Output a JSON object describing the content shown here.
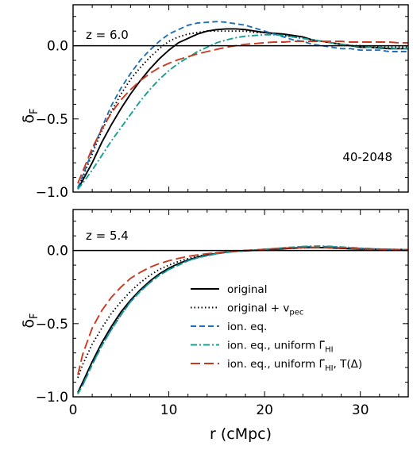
{
  "chart_data": [
    {
      "type": "line",
      "panel": "top",
      "annotation_z": "z = 6.0",
      "annotation_box": "40-2048",
      "xlabel": "",
      "ylabel": "δF",
      "xlim": [
        0,
        35
      ],
      "ylim": [
        -1.0,
        0.28
      ],
      "xticks": [
        0,
        10,
        20,
        30
      ],
      "xtick_labels_shown": false,
      "yticks": [
        -1.0,
        -0.5,
        0.0
      ],
      "ytick_labels": [
        "−1.0",
        "−0.5",
        "0.0"
      ],
      "zero_line": true,
      "series": [
        {
          "name": "original",
          "color": "#000000",
          "style": "solid",
          "x": [
            0.5,
            1,
            2,
            3,
            4,
            5,
            6,
            7,
            8,
            9,
            10,
            11,
            12,
            13,
            14,
            15,
            16,
            17,
            18,
            19,
            20,
            21,
            22,
            23,
            24,
            25,
            26,
            27,
            28,
            29,
            30,
            31,
            32,
            33,
            34,
            35
          ],
          "y": [
            -0.98,
            -0.92,
            -0.8,
            -0.66,
            -0.54,
            -0.43,
            -0.33,
            -0.24,
            -0.16,
            -0.09,
            -0.03,
            0.02,
            0.05,
            0.08,
            0.1,
            0.11,
            0.115,
            0.115,
            0.11,
            0.1,
            0.09,
            0.085,
            0.08,
            0.07,
            0.06,
            0.04,
            0.03,
            0.02,
            0.01,
            0.0,
            -0.01,
            -0.01,
            -0.015,
            -0.02,
            -0.02,
            -0.02
          ]
        },
        {
          "name": "original + vpec",
          "color": "#000000",
          "style": "dotted",
          "x": [
            0.5,
            1,
            2,
            3,
            4,
            5,
            6,
            7,
            8,
            9,
            10,
            11,
            12,
            13,
            14,
            15,
            16,
            17,
            18,
            19,
            20,
            21,
            22,
            23,
            24,
            25,
            26,
            27,
            28,
            29,
            30,
            31,
            32,
            33,
            34,
            35
          ],
          "y": [
            -0.97,
            -0.9,
            -0.74,
            -0.58,
            -0.45,
            -0.33,
            -0.23,
            -0.15,
            -0.08,
            -0.02,
            0.03,
            0.06,
            0.08,
            0.09,
            0.1,
            0.1,
            0.1,
            0.1,
            0.1,
            0.09,
            0.09,
            0.08,
            0.07,
            0.06,
            0.05,
            0.04,
            0.03,
            0.02,
            0.01,
            0.0,
            0.0,
            -0.005,
            -0.01,
            -0.01,
            -0.01,
            -0.01
          ]
        },
        {
          "name": "ion. eq.",
          "color": "#1f6fb5",
          "style": "dashed",
          "x": [
            0.5,
            1,
            2,
            3,
            4,
            5,
            6,
            7,
            8,
            9,
            10,
            11,
            12,
            13,
            14,
            15,
            16,
            17,
            18,
            19,
            20,
            21,
            22,
            23,
            24,
            25,
            26,
            27,
            28,
            29,
            30,
            31,
            32,
            33,
            34,
            35
          ],
          "y": [
            -0.97,
            -0.89,
            -0.72,
            -0.56,
            -0.41,
            -0.29,
            -0.19,
            -0.1,
            -0.03,
            0.03,
            0.08,
            0.11,
            0.14,
            0.155,
            0.16,
            0.165,
            0.16,
            0.15,
            0.14,
            0.12,
            0.1,
            0.08,
            0.06,
            0.04,
            0.03,
            0.01,
            0.0,
            -0.01,
            -0.02,
            -0.02,
            -0.03,
            -0.03,
            -0.03,
            -0.04,
            -0.04,
            -0.04
          ]
        },
        {
          "name": "ion. eq., uniform Γ̃HI",
          "color": "#16a090",
          "style": "dashdot",
          "x": [
            0.5,
            1,
            2,
            3,
            4,
            5,
            6,
            7,
            8,
            9,
            10,
            11,
            12,
            13,
            14,
            15,
            16,
            17,
            18,
            19,
            20,
            21,
            22,
            23,
            24,
            25,
            26,
            27,
            28,
            29,
            30,
            31,
            32,
            33,
            34,
            35
          ],
          "y": [
            -0.98,
            -0.94,
            -0.85,
            -0.75,
            -0.65,
            -0.56,
            -0.47,
            -0.38,
            -0.3,
            -0.23,
            -0.17,
            -0.12,
            -0.08,
            -0.04,
            -0.01,
            0.02,
            0.04,
            0.055,
            0.065,
            0.07,
            0.075,
            0.075,
            0.07,
            0.06,
            0.05,
            0.04,
            0.03,
            0.02,
            0.01,
            0.0,
            -0.005,
            -0.01,
            -0.01,
            -0.015,
            -0.02,
            -0.02
          ]
        },
        {
          "name": "ion. eq., uniform Γ̃HI, T(Δ)",
          "color": "#c8391f",
          "style": "longdash",
          "x": [
            0.5,
            1,
            2,
            3,
            4,
            5,
            6,
            7,
            8,
            9,
            10,
            11,
            12,
            13,
            14,
            15,
            16,
            17,
            18,
            19,
            20,
            21,
            22,
            23,
            24,
            25,
            26,
            27,
            28,
            29,
            30,
            31,
            32,
            33,
            34,
            35
          ],
          "y": [
            -0.94,
            -0.86,
            -0.7,
            -0.57,
            -0.46,
            -0.37,
            -0.3,
            -0.24,
            -0.19,
            -0.15,
            -0.12,
            -0.095,
            -0.075,
            -0.055,
            -0.04,
            -0.025,
            -0.01,
            0.0,
            0.01,
            0.015,
            0.02,
            0.025,
            0.025,
            0.03,
            0.03,
            0.03,
            0.03,
            0.03,
            0.03,
            0.025,
            0.025,
            0.025,
            0.025,
            0.025,
            0.02,
            0.02
          ]
        }
      ]
    },
    {
      "type": "line",
      "panel": "bottom",
      "annotation_z": "z = 5.4",
      "xlabel": "r (cMpc)",
      "ylabel": "δF",
      "xlim": [
        0,
        35
      ],
      "ylim": [
        -1.0,
        0.28
      ],
      "xticks": [
        0,
        10,
        20,
        30
      ],
      "xtick_labels": [
        "0",
        "10",
        "20",
        "30"
      ],
      "yticks": [
        -1.0,
        -0.5,
        0.0
      ],
      "ytick_labels": [
        "−1.0",
        "−0.5",
        "0.0"
      ],
      "zero_line": true,
      "legend": {
        "placement": "lower-right",
        "entries": [
          {
            "label": "original",
            "sub": ""
          },
          {
            "label": "original + v",
            "sub": "pec"
          },
          {
            "label": "ion. eq.",
            "sub": ""
          },
          {
            "label": "ion. eq., uniform Γ̃",
            "sub": "HI"
          },
          {
            "label": "ion. eq., uniform Γ̃",
            "sub": "HI",
            "suffix": ", T(Δ)"
          }
        ]
      },
      "series": [
        {
          "name": "original",
          "color": "#000000",
          "style": "solid",
          "x": [
            0.5,
            1,
            2,
            3,
            4,
            5,
            6,
            7,
            8,
            9,
            10,
            11,
            12,
            13,
            14,
            15,
            16,
            17,
            18,
            19,
            20,
            21,
            22,
            23,
            24,
            25,
            26,
            27,
            28,
            29,
            30,
            31,
            32,
            33,
            34,
            35
          ],
          "y": [
            -0.97,
            -0.9,
            -0.76,
            -0.63,
            -0.52,
            -0.42,
            -0.34,
            -0.27,
            -0.21,
            -0.16,
            -0.12,
            -0.09,
            -0.065,
            -0.045,
            -0.03,
            -0.02,
            -0.012,
            -0.006,
            -0.002,
            0.001,
            0.004,
            0.008,
            0.012,
            0.016,
            0.02,
            0.02,
            0.02,
            0.018,
            0.015,
            0.012,
            0.01,
            0.01,
            0.008,
            0.006,
            0.005,
            0.005
          ]
        },
        {
          "name": "original + vpec",
          "color": "#000000",
          "style": "dotted",
          "x": [
            0.5,
            1,
            2,
            3,
            4,
            5,
            6,
            7,
            8,
            9,
            10,
            11,
            12,
            13,
            14,
            15,
            16,
            17,
            18,
            19,
            20,
            21,
            22,
            23,
            24,
            25,
            26,
            27,
            28,
            29,
            30,
            31,
            32,
            33,
            34,
            35
          ],
          "y": [
            -0.87,
            -0.78,
            -0.64,
            -0.53,
            -0.43,
            -0.35,
            -0.28,
            -0.22,
            -0.17,
            -0.13,
            -0.1,
            -0.075,
            -0.055,
            -0.04,
            -0.028,
            -0.018,
            -0.01,
            -0.004,
            0.0,
            0.004,
            0.007,
            0.01,
            0.013,
            0.016,
            0.018,
            0.02,
            0.02,
            0.018,
            0.016,
            0.014,
            0.012,
            0.01,
            0.009,
            0.008,
            0.007,
            0.006
          ]
        },
        {
          "name": "ion. eq.",
          "color": "#1f6fb5",
          "style": "dashed",
          "x": [
            0.5,
            1,
            2,
            3,
            4,
            5,
            6,
            7,
            8,
            9,
            10,
            11,
            12,
            13,
            14,
            15,
            16,
            17,
            18,
            19,
            20,
            21,
            22,
            23,
            24,
            25,
            26,
            27,
            28,
            29,
            30,
            31,
            32,
            33,
            34,
            35
          ],
          "y": [
            -0.98,
            -0.92,
            -0.78,
            -0.65,
            -0.54,
            -0.44,
            -0.35,
            -0.28,
            -0.22,
            -0.17,
            -0.13,
            -0.1,
            -0.07,
            -0.05,
            -0.035,
            -0.022,
            -0.013,
            -0.006,
            -0.001,
            0.003,
            0.008,
            0.013,
            0.018,
            0.022,
            0.025,
            0.027,
            0.027,
            0.025,
            0.022,
            0.018,
            0.015,
            0.012,
            0.01,
            0.008,
            0.006,
            0.005
          ]
        },
        {
          "name": "ion. eq., uniform Γ̃HI",
          "color": "#16a090",
          "style": "dashdot",
          "x": [
            0.5,
            1,
            2,
            3,
            4,
            5,
            6,
            7,
            8,
            9,
            10,
            11,
            12,
            13,
            14,
            15,
            16,
            17,
            18,
            19,
            20,
            21,
            22,
            23,
            24,
            25,
            26,
            27,
            28,
            29,
            30,
            31,
            32,
            33,
            34,
            35
          ],
          "y": [
            -0.98,
            -0.92,
            -0.78,
            -0.65,
            -0.54,
            -0.44,
            -0.35,
            -0.28,
            -0.22,
            -0.17,
            -0.13,
            -0.1,
            -0.07,
            -0.05,
            -0.035,
            -0.022,
            -0.013,
            -0.006,
            -0.001,
            0.003,
            0.008,
            0.013,
            0.018,
            0.023,
            0.027,
            0.03,
            0.03,
            0.028,
            0.024,
            0.02,
            0.016,
            0.013,
            0.01,
            0.008,
            0.006,
            0.005
          ]
        },
        {
          "name": "ion. eq., uniform Γ̃HI, T(Δ)",
          "color": "#c8391f",
          "style": "longdash",
          "x": [
            0.5,
            1,
            2,
            3,
            4,
            5,
            6,
            7,
            8,
            9,
            10,
            11,
            12,
            13,
            14,
            15,
            16,
            17,
            18,
            19,
            20,
            21,
            22,
            23,
            24,
            25,
            26,
            27,
            28,
            29,
            30,
            31,
            32,
            33,
            34,
            35
          ],
          "y": [
            -0.85,
            -0.71,
            -0.53,
            -0.41,
            -0.32,
            -0.25,
            -0.19,
            -0.15,
            -0.115,
            -0.09,
            -0.07,
            -0.054,
            -0.04,
            -0.03,
            -0.022,
            -0.015,
            -0.009,
            -0.004,
            0.0,
            0.004,
            0.008,
            0.012,
            0.016,
            0.019,
            0.021,
            0.022,
            0.022,
            0.02,
            0.018,
            0.015,
            0.013,
            0.011,
            0.009,
            0.007,
            0.006,
            0.005
          ]
        }
      ]
    }
  ]
}
